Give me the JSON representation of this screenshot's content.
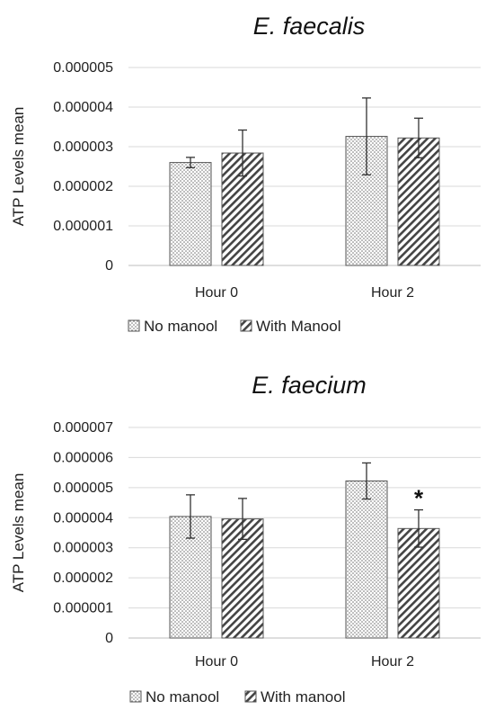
{
  "chart_data": [
    {
      "type": "bar",
      "title": "E. faecalis",
      "ylabel": "ATP Levels mean",
      "xlabel": "",
      "categories": [
        "Hour 0",
        "Hour 2"
      ],
      "ylim": [
        0,
        5e-06
      ],
      "yticks": [
        "0",
        "0.000001",
        "0.000002",
        "0.000003",
        "0.000004",
        "0.000005"
      ],
      "grid": true,
      "legend_position": "bottom",
      "series": [
        {
          "name": "No manool",
          "pattern": "dots",
          "values": [
            2.6e-06,
            3.26e-06
          ],
          "errors": [
            1.3e-07,
            9.7e-07
          ]
        },
        {
          "name": "With Manool",
          "pattern": "diagonal-stripes",
          "values": [
            2.84e-06,
            3.22e-06
          ],
          "errors": [
            5.8e-07,
            5e-07
          ]
        }
      ],
      "annotations": []
    },
    {
      "type": "bar",
      "title": "E. faecium",
      "ylabel": "ATP Levels mean",
      "xlabel": "",
      "categories": [
        "Hour 0",
        "Hour 2"
      ],
      "ylim": [
        0,
        7e-06
      ],
      "yticks": [
        "0",
        "0.000001",
        "0.000002",
        "0.000003",
        "0.000004",
        "0.000005",
        "0.000006",
        "0.000007"
      ],
      "grid": true,
      "legend_position": "bottom",
      "series": [
        {
          "name": "No manool",
          "pattern": "dots",
          "values": [
            4.04e-06,
            5.22e-06
          ],
          "errors": [
            7.2e-07,
            6e-07
          ]
        },
        {
          "name": "With manool",
          "pattern": "diagonal-stripes",
          "values": [
            3.96e-06,
            3.64e-06
          ],
          "errors": [
            6.8e-07,
            6.2e-07
          ]
        }
      ],
      "annotations": [
        {
          "text": "*",
          "category": "Hour 2",
          "series": 1
        }
      ]
    }
  ]
}
